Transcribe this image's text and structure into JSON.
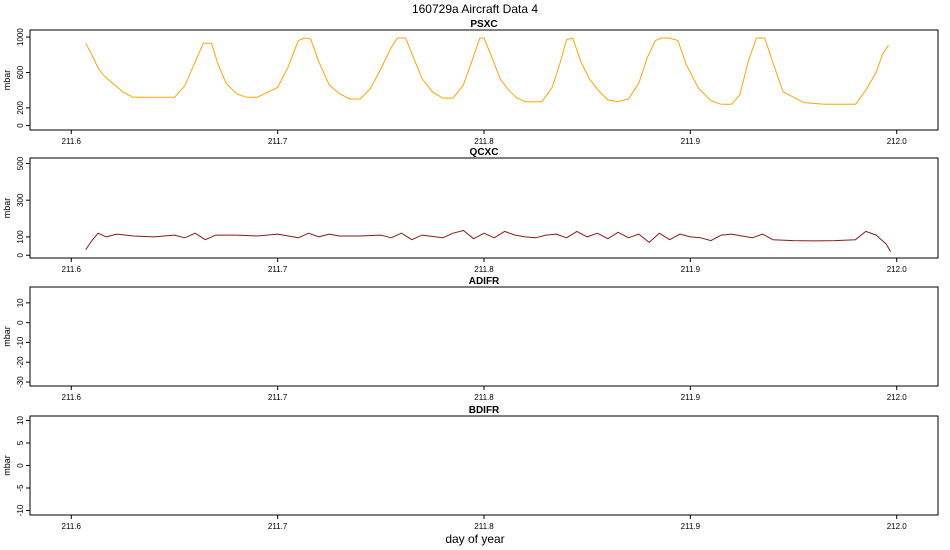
{
  "figure": {
    "title": "160729a   Aircraft Data 4",
    "xlabel": "day of year"
  },
  "chart_data": [
    {
      "type": "line",
      "title": "PSXC",
      "ylabel": "mbar",
      "xlim": [
        211.58,
        212.02
      ],
      "ylim": [
        -50,
        1080
      ],
      "xticks": [
        "211.6",
        "211.7",
        "211.8",
        "211.9",
        "212.0"
      ],
      "yticks": [
        "0",
        "200",
        "600",
        "1000"
      ],
      "ytick_values": [
        0,
        200,
        600,
        1000
      ],
      "color": "#FFA500",
      "x": [
        211.607,
        211.61,
        211.613,
        211.616,
        211.62,
        211.625,
        211.63,
        211.64,
        211.65,
        211.655,
        211.66,
        211.664,
        211.668,
        211.671,
        211.675,
        211.68,
        211.685,
        211.69,
        211.7,
        211.705,
        211.71,
        211.713,
        211.716,
        211.72,
        211.725,
        211.73,
        211.735,
        211.74,
        211.745,
        211.75,
        211.755,
        211.758,
        211.762,
        211.766,
        211.77,
        211.775,
        211.78,
        211.785,
        211.79,
        211.794,
        211.798,
        211.8,
        211.804,
        211.808,
        211.812,
        211.816,
        211.82,
        211.828,
        211.833,
        211.837,
        211.84,
        211.843,
        211.847,
        211.851,
        211.856,
        211.86,
        211.865,
        211.87,
        211.875,
        211.879,
        211.883,
        211.886,
        211.89,
        211.894,
        211.898,
        211.904,
        211.91,
        211.915,
        211.92,
        211.924,
        211.928,
        211.932,
        211.936,
        211.94,
        211.945,
        211.955,
        211.965,
        211.975,
        211.98,
        211.985,
        211.99,
        211.993,
        211.996
      ],
      "y": [
        930,
        800,
        650,
        560,
        480,
        380,
        320,
        320,
        320,
        450,
        720,
        930,
        930,
        700,
        480,
        360,
        320,
        320,
        430,
        660,
        960,
        990,
        980,
        720,
        460,
        360,
        300,
        300,
        420,
        640,
        880,
        990,
        990,
        760,
        530,
        380,
        310,
        310,
        460,
        720,
        990,
        990,
        760,
        520,
        400,
        310,
        270,
        270,
        430,
        720,
        970,
        990,
        720,
        530,
        380,
        290,
        270,
        300,
        480,
        760,
        960,
        990,
        990,
        960,
        690,
        420,
        280,
        240,
        240,
        350,
        720,
        990,
        990,
        710,
        380,
        260,
        240,
        240,
        240,
        400,
        600,
        800,
        910
      ]
    },
    {
      "type": "line",
      "title": "QCXC",
      "ylabel": "mbar",
      "xlim": [
        211.58,
        212.02
      ],
      "ylim": [
        -15,
        530
      ],
      "xticks": [
        "211.6",
        "211.7",
        "211.8",
        "211.9",
        "212.0"
      ],
      "yticks": [
        "0",
        "100",
        "300",
        "500"
      ],
      "ytick_values": [
        0,
        100,
        300,
        500
      ],
      "color": "#8B1A1A",
      "x": [
        211.607,
        211.61,
        211.613,
        211.617,
        211.622,
        211.63,
        211.64,
        211.65,
        211.655,
        211.66,
        211.665,
        211.67,
        211.68,
        211.69,
        211.7,
        211.71,
        211.715,
        211.72,
        211.725,
        211.73,
        211.74,
        211.75,
        211.755,
        211.76,
        211.765,
        211.77,
        211.78,
        211.785,
        211.79,
        211.795,
        211.8,
        211.805,
        211.81,
        211.815,
        211.82,
        211.825,
        211.83,
        211.835,
        211.84,
        211.845,
        211.85,
        211.855,
        211.86,
        211.865,
        211.87,
        211.875,
        211.88,
        211.885,
        211.89,
        211.895,
        211.9,
        211.905,
        211.91,
        211.915,
        211.92,
        211.925,
        211.93,
        211.935,
        211.94,
        211.95,
        211.96,
        211.97,
        211.98,
        211.985,
        211.99,
        211.995,
        211.997
      ],
      "y": [
        30,
        80,
        120,
        100,
        115,
        105,
        100,
        110,
        95,
        120,
        85,
        110,
        110,
        105,
        115,
        95,
        120,
        100,
        115,
        105,
        105,
        110,
        95,
        120,
        85,
        110,
        95,
        120,
        135,
        90,
        120,
        95,
        130,
        110,
        100,
        95,
        110,
        115,
        95,
        130,
        100,
        120,
        90,
        125,
        95,
        115,
        70,
        120,
        85,
        115,
        100,
        95,
        80,
        110,
        115,
        105,
        95,
        115,
        85,
        80,
        78,
        80,
        85,
        130,
        110,
        60,
        20
      ]
    },
    {
      "type": "line",
      "title": "ADIFR",
      "ylabel": "mbar",
      "xlim": [
        211.58,
        212.02
      ],
      "ylim": [
        -32,
        18
      ],
      "xticks": [
        "211.6",
        "211.7",
        "211.8",
        "211.9",
        "212.0"
      ],
      "yticks": [
        "-30",
        "-20",
        "-10",
        "0",
        "10"
      ],
      "ytick_values": [
        -30,
        -20,
        -10,
        0,
        10
      ],
      "color": "#000000",
      "x": [],
      "y": []
    },
    {
      "type": "line",
      "title": "BDIFR",
      "ylabel": "mbar",
      "xlim": [
        211.58,
        212.02
      ],
      "ylim": [
        -11,
        11
      ],
      "xticks": [
        "211.6",
        "211.7",
        "211.8",
        "211.9",
        "212.0"
      ],
      "yticks": [
        "-10",
        "-5",
        "0",
        "5",
        "10"
      ],
      "ytick_values": [
        -10,
        -5,
        0,
        5,
        10
      ],
      "color": "#000000",
      "x": [],
      "y": []
    }
  ]
}
